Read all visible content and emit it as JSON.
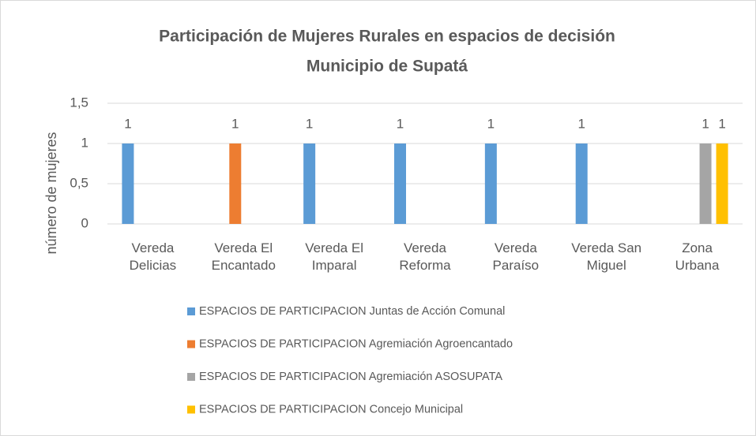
{
  "chart_data": {
    "type": "bar",
    "title": [
      "Participación de Mujeres Rurales en espacios de decisión",
      "Municipio de Supatá"
    ],
    "y_label": "número de mujeres",
    "categories": [
      "Vereda Delicias",
      "Vereda El Encantado",
      "Vereda El Imparal",
      "Vereda Reforma",
      "Vereda Paraíso",
      "Vereda San Miguel",
      "Zona Urbana"
    ],
    "series": [
      {
        "name": "ESPACIOS DE PARTICIPACION Juntas de Acción Comunal",
        "color": "#5b9bd5",
        "values": [
          1,
          null,
          1,
          1,
          1,
          1,
          null
        ]
      },
      {
        "name": "ESPACIOS DE PARTICIPACION Agremiación Agroencantado",
        "color": "#ed7d31",
        "values": [
          null,
          1,
          null,
          null,
          null,
          null,
          null
        ]
      },
      {
        "name": "ESPACIOS DE PARTICIPACION Agremiación ASOSUPATA",
        "color": "#a5a5a5",
        "values": [
          null,
          null,
          null,
          null,
          null,
          null,
          1
        ]
      },
      {
        "name": "ESPACIOS DE PARTICIPACION  Concejo Municipal",
        "color": "#ffc000",
        "values": [
          null,
          null,
          null,
          null,
          null,
          null,
          1
        ]
      }
    ],
    "ylim": [
      0,
      1.5
    ],
    "yticks": [
      0,
      {
        "value": 0.5,
        "label": "0,5"
      },
      1,
      {
        "value": 1.5,
        "label": "1,5"
      }
    ],
    "grid": true,
    "legend": "bottom"
  }
}
